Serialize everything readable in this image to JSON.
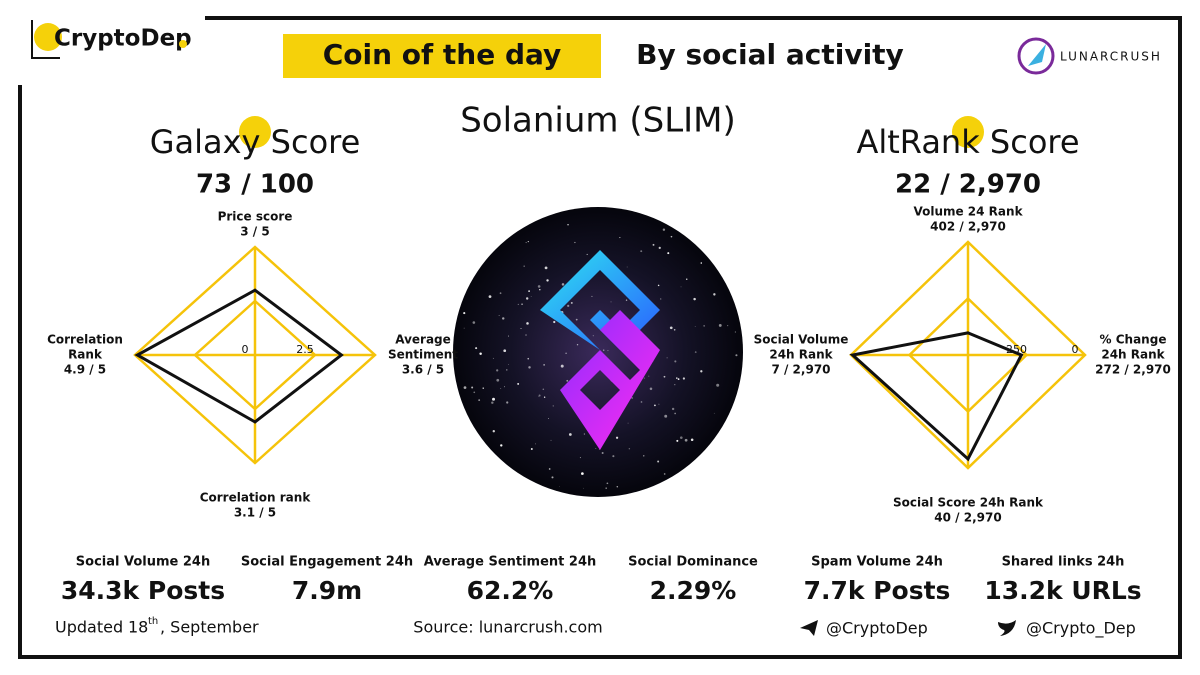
{
  "header": {
    "brand": "CryptoDep",
    "title": "Coin of the day",
    "subtitle": "By social activity",
    "partner": "LUNARCRUSH"
  },
  "coin": "Solanium (SLIM)",
  "radars": [
    {
      "title": "Galaxy Score",
      "score": "73 / 100",
      "rlim": [
        0,
        5
      ],
      "ticks": [
        0,
        2.5
      ],
      "axes": [
        {
          "name": [
            "Price score"
          ],
          "label": "3 / 5",
          "value": 3
        },
        {
          "name": [
            "Average",
            "Sentiment"
          ],
          "label": "3.6 / 5",
          "value": 3.6
        },
        {
          "name": [
            "Correlation rank"
          ],
          "label": "3.1 / 5",
          "value": 3.1
        },
        {
          "name": [
            "Correlation",
            "Rank"
          ],
          "label": "4.9 / 5",
          "value": 4.9
        }
      ]
    },
    {
      "title": "AltRank Score",
      "score": "22 / 2,970",
      "rlim": [
        500,
        0
      ],
      "ticks": [
        250,
        0
      ],
      "axes": [
        {
          "name": [
            "Volume 24 Rank"
          ],
          "label": "402 / 2,970",
          "value": 402
        },
        {
          "name": [
            "% Change",
            "24h Rank"
          ],
          "label": "272 / 2,970",
          "value": 272
        },
        {
          "name": [
            "Social Score 24h Rank"
          ],
          "label": "40 / 2,970",
          "value": 40
        },
        {
          "name": [
            "Social Volume",
            "24h Rank"
          ],
          "label": "7 / 2,970",
          "value": 7
        }
      ]
    }
  ],
  "stats": [
    {
      "label": "Social Volume 24h",
      "value": "34.3k Posts"
    },
    {
      "label": "Social Engagement 24h",
      "value": "7.9m"
    },
    {
      "label": "Average Sentiment 24h",
      "value": "62.2%"
    },
    {
      "label": "Social Dominance",
      "value": "2.29%"
    },
    {
      "label": "Spam Volume 24h",
      "value": "7.7k Posts"
    },
    {
      "label": "Shared links 24h",
      "value": "13.2k URLs"
    }
  ],
  "footer": {
    "updated": "Updated",
    "day": "18",
    "suffix": "th",
    "month": ", September",
    "source": "Source: lunarcrush.com",
    "telegram": "@CryptoDep",
    "twitter": "@Crypto_Dep"
  }
}
